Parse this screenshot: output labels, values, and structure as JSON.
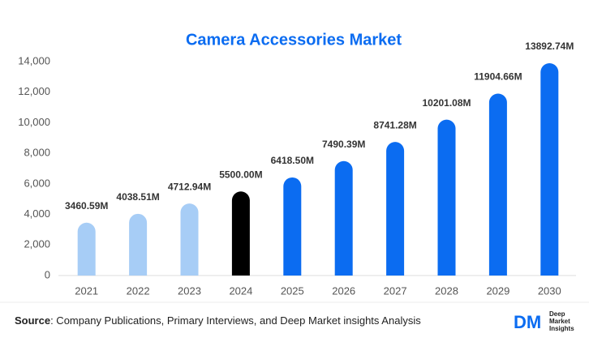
{
  "chart_data": {
    "type": "bar",
    "title": "Camera Accessories Market",
    "categories": [
      "2021",
      "2022",
      "2023",
      "2024",
      "2025",
      "2026",
      "2027",
      "2028",
      "2029",
      "2030"
    ],
    "values": [
      3460.59,
      4038.51,
      4712.94,
      5500.0,
      6418.5,
      7490.39,
      8741.28,
      10201.08,
      11904.66,
      13892.74
    ],
    "value_labels": [
      "3460.59M",
      "4038.51M",
      "4712.94M",
      "5500.00M",
      "6418.50M",
      "7490.39M",
      "8741.28M",
      "10201.08M",
      "11904.66M",
      "13892.74M"
    ],
    "colors": [
      "#a7cdf6",
      "#a7cdf6",
      "#a7cdf6",
      "#000000",
      "#0b6cf1",
      "#0b6cf1",
      "#0b6cf1",
      "#0b6cf1",
      "#0b6cf1",
      "#0b6cf1"
    ],
    "ylim": [
      0,
      14000
    ],
    "yticks": [
      0,
      {
        "value": 2000,
        "label": "2,000"
      },
      {
        "value": 4000,
        "label": "4,000"
      },
      {
        "value": 6000,
        "label": "6,000"
      },
      {
        "value": 8000,
        "label": "8,000"
      },
      {
        "value": 10000,
        "label": "10,000"
      },
      {
        "value": 12000,
        "label": "12,000"
      },
      {
        "value": 14000,
        "label": "14,000"
      }
    ],
    "grid": false
  },
  "footer": {
    "source_label": "Source",
    "source_text": ": Company Publications, Primary Interviews, and Deep Market insights Analysis",
    "logo_mark": "DM",
    "logo_lines": [
      "Deep",
      "Market",
      "Insights"
    ]
  }
}
